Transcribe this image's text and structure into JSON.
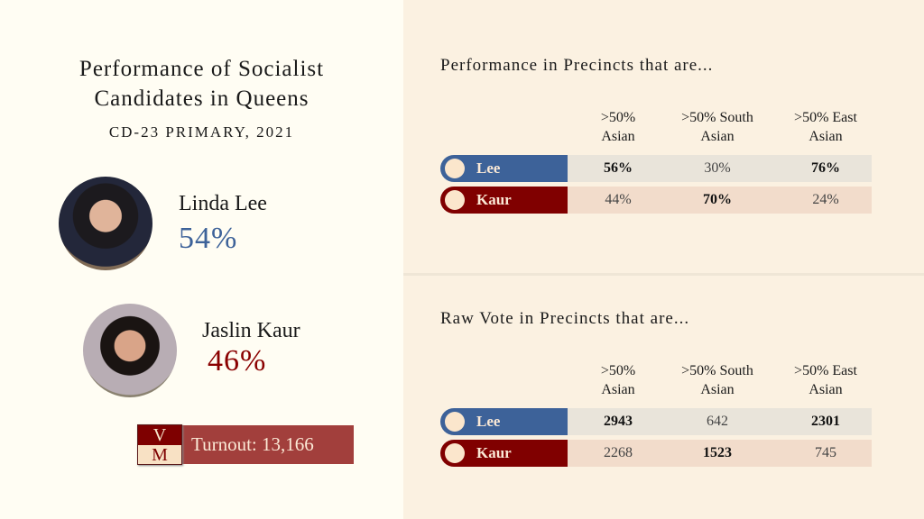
{
  "left": {
    "title_line1": "Performance of Socialist",
    "title_line2": "Candidates in Queens",
    "subtitle": "CD-23 PRIMARY, 2021",
    "candidates": [
      {
        "name": "Linda Lee",
        "pct": "54%",
        "color": "#3d6299"
      },
      {
        "name": "Jaslin Kaur",
        "pct": "46%",
        "color": "#8a0000"
      }
    ],
    "logo": {
      "top": "V",
      "bottom": "M"
    },
    "turnout": "Turnout: 13,166"
  },
  "columns": [
    [
      ">50%",
      "Asian"
    ],
    [
      ">50% South",
      "Asian"
    ],
    [
      ">50% East",
      "Asian"
    ]
  ],
  "tables": [
    {
      "title": "Performance in Precincts that are...",
      "rows": [
        {
          "label": "Lee",
          "color": "#3d6299",
          "values": [
            "56%",
            "30%",
            "76%"
          ],
          "bold": [
            true,
            false,
            true
          ]
        },
        {
          "label": "Kaur",
          "color": "#800000",
          "values": [
            "44%",
            "70%",
            "24%"
          ],
          "bold": [
            false,
            true,
            false
          ]
        }
      ]
    },
    {
      "title": "Raw Vote in Precincts that are...",
      "rows": [
        {
          "label": "Lee",
          "color": "#3d6299",
          "values": [
            "2943",
            "642",
            "2301"
          ],
          "bold": [
            true,
            false,
            true
          ]
        },
        {
          "label": "Kaur",
          "color": "#800000",
          "values": [
            "2268",
            "1523",
            "745"
          ],
          "bold": [
            false,
            true,
            false
          ]
        }
      ]
    }
  ]
}
